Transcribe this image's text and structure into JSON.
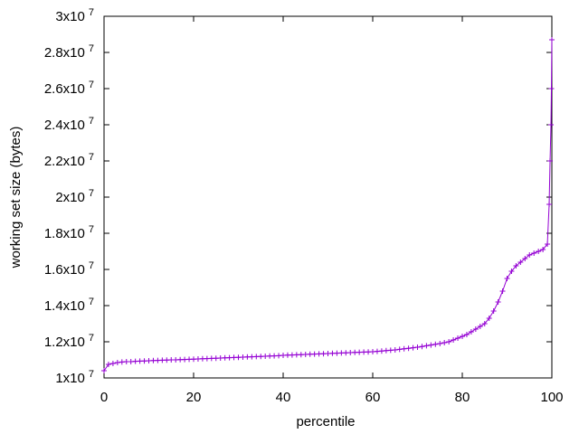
{
  "chart_data": {
    "type": "line",
    "x_label": "percentile",
    "y_label": "working set size (bytes)",
    "x": [
      0,
      1,
      2,
      3,
      4,
      5,
      6,
      7,
      8,
      9,
      10,
      11,
      12,
      13,
      14,
      15,
      16,
      17,
      18,
      19,
      20,
      21,
      22,
      23,
      24,
      25,
      26,
      27,
      28,
      29,
      30,
      31,
      32,
      33,
      34,
      35,
      36,
      37,
      38,
      39,
      40,
      41,
      42,
      43,
      44,
      45,
      46,
      47,
      48,
      49,
      50,
      51,
      52,
      53,
      54,
      55,
      56,
      57,
      58,
      59,
      60,
      61,
      62,
      63,
      64,
      65,
      66,
      67,
      68,
      69,
      70,
      71,
      72,
      73,
      74,
      75,
      76,
      77,
      78,
      79,
      80,
      81,
      82,
      83,
      84,
      85,
      86,
      87,
      88,
      89,
      90,
      91,
      92,
      93,
      94,
      95,
      96,
      97,
      98,
      99,
      99.4,
      99.6,
      99.8,
      99.9,
      100
    ],
    "series": [
      {
        "color": "#9400d3",
        "values": [
          10400000,
          10750000,
          10800000,
          10850000,
          10880000,
          10900000,
          10900000,
          10920000,
          10930000,
          10940000,
          10950000,
          10960000,
          10970000,
          10980000,
          10990000,
          11000000,
          11000000,
          11010000,
          11020000,
          11030000,
          11040000,
          11050000,
          11060000,
          11070000,
          11080000,
          11090000,
          11100000,
          11110000,
          11120000,
          11130000,
          11140000,
          11150000,
          11160000,
          11170000,
          11180000,
          11190000,
          11200000,
          11210000,
          11220000,
          11230000,
          11250000,
          11260000,
          11270000,
          11280000,
          11290000,
          11300000,
          11310000,
          11320000,
          11330000,
          11340000,
          11350000,
          11360000,
          11370000,
          11380000,
          11390000,
          11400000,
          11410000,
          11420000,
          11430000,
          11440000,
          11450000,
          11470000,
          11490000,
          11510000,
          11530000,
          11550000,
          11580000,
          11610000,
          11640000,
          11670000,
          11700000,
          11740000,
          11780000,
          11820000,
          11860000,
          11900000,
          11950000,
          12000000,
          12100000,
          12200000,
          12300000,
          12400000,
          12550000,
          12700000,
          12850000,
          13000000,
          13300000,
          13700000,
          14200000,
          14800000,
          15500000,
          15900000,
          16200000,
          16400000,
          16600000,
          16800000,
          16900000,
          17000000,
          17100000,
          17400000,
          19600000,
          22000000,
          24000000,
          26000000,
          28700000
        ]
      }
    ],
    "xlim": [
      0,
      100
    ],
    "xticks": [
      0,
      20,
      40,
      60,
      80,
      100
    ],
    "ylim": [
      10000000,
      30000000
    ],
    "yticks": [
      {
        "value": 10000000,
        "label": "1x10",
        "exponent": "7"
      },
      {
        "value": 12000000,
        "label": "1.2x10",
        "exponent": "7"
      },
      {
        "value": 14000000,
        "label": "1.4x10",
        "exponent": "7"
      },
      {
        "value": 16000000,
        "label": "1.6x10",
        "exponent": "7"
      },
      {
        "value": 18000000,
        "label": "1.8x10",
        "exponent": "7"
      },
      {
        "value": 20000000,
        "label": "2x10",
        "exponent": "7"
      },
      {
        "value": 22000000,
        "label": "2.2x10",
        "exponent": "7"
      },
      {
        "value": 24000000,
        "label": "2.4x10",
        "exponent": "7"
      },
      {
        "value": 26000000,
        "label": "2.6x10",
        "exponent": "7"
      },
      {
        "value": 28000000,
        "label": "2.8x10",
        "exponent": "7"
      },
      {
        "value": 30000000,
        "label": "3x10",
        "exponent": "7"
      }
    ],
    "grid": false
  }
}
